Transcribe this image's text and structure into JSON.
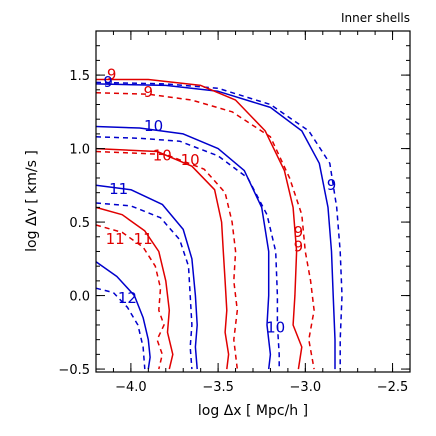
{
  "chart_data": {
    "type": "line",
    "title": "Inner shells",
    "xlabel": "log Δx  [ Mpc/h ]",
    "ylabel": "log Δv  [ km/s ]",
    "xlim": [
      -4.2,
      -2.4
    ],
    "ylim": [
      -0.52,
      1.8
    ],
    "xticks": [
      -4.0,
      -3.5,
      -3.0,
      -2.5
    ],
    "xtick_labels": [
      "−4.0",
      "−3.5",
      "−3.0",
      "−2.5"
    ],
    "yticks": [
      -0.5,
      0.0,
      0.5,
      1.0,
      1.5
    ],
    "ytick_labels": [
      "−0.5",
      "0.0",
      "0.5",
      "1.0",
      "1.5"
    ],
    "colors": {
      "blue": "#0000cc",
      "red": "#e00000"
    },
    "series": [
      {
        "color": "blue",
        "dash": false,
        "points": [
          [
            -4.2,
            1.44
          ],
          [
            -3.8,
            1.43
          ],
          [
            -3.5,
            1.39
          ],
          [
            -3.2,
            1.28
          ],
          [
            -3.02,
            1.12
          ],
          [
            -2.92,
            0.9
          ],
          [
            -2.87,
            0.6
          ],
          [
            -2.85,
            0.3
          ],
          [
            -2.84,
            0.0
          ],
          [
            -2.83,
            -0.3
          ],
          [
            -2.83,
            -0.5
          ]
        ]
      },
      {
        "color": "blue",
        "dash": true,
        "points": [
          [
            -4.2,
            1.45
          ],
          [
            -3.8,
            1.44
          ],
          [
            -3.5,
            1.41
          ],
          [
            -3.2,
            1.3
          ],
          [
            -2.98,
            1.12
          ],
          [
            -2.86,
            0.9
          ],
          [
            -2.82,
            0.6
          ],
          [
            -2.8,
            0.3
          ],
          [
            -2.79,
            0.0
          ],
          [
            -2.8,
            -0.3
          ],
          [
            -2.8,
            -0.5
          ]
        ]
      },
      {
        "color": "red",
        "dash": false,
        "points": [
          [
            -4.2,
            1.47
          ],
          [
            -3.9,
            1.47
          ],
          [
            -3.6,
            1.43
          ],
          [
            -3.4,
            1.33
          ],
          [
            -3.23,
            1.12
          ],
          [
            -3.12,
            0.85
          ],
          [
            -3.07,
            0.6
          ],
          [
            -3.05,
            0.3
          ],
          [
            -3.06,
            0.0
          ],
          [
            -3.07,
            -0.2
          ],
          [
            -3.02,
            -0.35
          ],
          [
            -3.04,
            -0.5
          ]
        ]
      },
      {
        "color": "red",
        "dash": true,
        "points": [
          [
            -4.2,
            1.38
          ],
          [
            -3.9,
            1.37
          ],
          [
            -3.65,
            1.33
          ],
          [
            -3.42,
            1.25
          ],
          [
            -3.2,
            1.08
          ],
          [
            -3.09,
            0.8
          ],
          [
            -3.02,
            0.55
          ],
          [
            -3.0,
            0.3
          ],
          [
            -2.97,
            0.1
          ],
          [
            -2.95,
            -0.1
          ],
          [
            -2.98,
            -0.3
          ],
          [
            -2.95,
            -0.5
          ]
        ]
      },
      {
        "color": "blue",
        "dash": false,
        "points": [
          [
            -4.2,
            1.15
          ],
          [
            -3.95,
            1.14
          ],
          [
            -3.7,
            1.1
          ],
          [
            -3.5,
            1.0
          ],
          [
            -3.35,
            0.85
          ],
          [
            -3.25,
            0.6
          ],
          [
            -3.21,
            0.3
          ],
          [
            -3.21,
            0.0
          ],
          [
            -3.22,
            -0.2
          ],
          [
            -3.2,
            -0.4
          ],
          [
            -3.21,
            -0.5
          ]
        ]
      },
      {
        "color": "blue",
        "dash": true,
        "points": [
          [
            -4.2,
            1.08
          ],
          [
            -3.95,
            1.07
          ],
          [
            -3.72,
            1.05
          ],
          [
            -3.5,
            0.95
          ],
          [
            -3.33,
            0.8
          ],
          [
            -3.22,
            0.55
          ],
          [
            -3.17,
            0.3
          ],
          [
            -3.16,
            0.0
          ],
          [
            -3.16,
            -0.2
          ],
          [
            -3.15,
            -0.4
          ],
          [
            -3.15,
            -0.5
          ]
        ]
      },
      {
        "color": "red",
        "dash": false,
        "points": [
          [
            -4.2,
            1.0
          ],
          [
            -3.85,
            0.98
          ],
          [
            -3.65,
            0.88
          ],
          [
            -3.52,
            0.72
          ],
          [
            -3.48,
            0.5
          ],
          [
            -3.47,
            0.3
          ],
          [
            -3.46,
            0.1
          ],
          [
            -3.45,
            -0.1
          ],
          [
            -3.46,
            -0.25
          ],
          [
            -3.44,
            -0.4
          ],
          [
            -3.45,
            -0.5
          ]
        ]
      },
      {
        "color": "red",
        "dash": true,
        "points": [
          [
            -4.2,
            0.98
          ],
          [
            -3.8,
            0.96
          ],
          [
            -3.58,
            0.86
          ],
          [
            -3.46,
            0.7
          ],
          [
            -3.42,
            0.5
          ],
          [
            -3.4,
            0.3
          ],
          [
            -3.41,
            0.1
          ],
          [
            -3.39,
            -0.1
          ],
          [
            -3.41,
            -0.3
          ],
          [
            -3.39,
            -0.5
          ]
        ]
      },
      {
        "color": "blue",
        "dash": false,
        "points": [
          [
            -4.2,
            0.75
          ],
          [
            -4.0,
            0.72
          ],
          [
            -3.82,
            0.62
          ],
          [
            -3.7,
            0.45
          ],
          [
            -3.65,
            0.25
          ],
          [
            -3.63,
            0.0
          ],
          [
            -3.62,
            -0.2
          ],
          [
            -3.63,
            -0.35
          ],
          [
            -3.62,
            -0.5
          ]
        ]
      },
      {
        "color": "blue",
        "dash": true,
        "points": [
          [
            -4.2,
            0.63
          ],
          [
            -4.0,
            0.61
          ],
          [
            -3.83,
            0.53
          ],
          [
            -3.72,
            0.38
          ],
          [
            -3.67,
            0.2
          ],
          [
            -3.66,
            0.0
          ],
          [
            -3.65,
            -0.2
          ],
          [
            -3.66,
            -0.35
          ],
          [
            -3.65,
            -0.5
          ]
        ]
      },
      {
        "color": "red",
        "dash": false,
        "points": [
          [
            -4.2,
            0.6
          ],
          [
            -4.05,
            0.55
          ],
          [
            -3.92,
            0.44
          ],
          [
            -3.84,
            0.3
          ],
          [
            -3.8,
            0.1
          ],
          [
            -3.78,
            -0.1
          ],
          [
            -3.79,
            -0.25
          ],
          [
            -3.76,
            -0.4
          ],
          [
            -3.78,
            -0.5
          ]
        ]
      },
      {
        "color": "red",
        "dash": true,
        "points": [
          [
            -4.2,
            0.48
          ],
          [
            -4.05,
            0.43
          ],
          [
            -3.93,
            0.33
          ],
          [
            -3.86,
            0.2
          ],
          [
            -3.83,
            0.05
          ],
          [
            -3.84,
            -0.1
          ],
          [
            -3.81,
            -0.2
          ],
          [
            -3.85,
            -0.3
          ],
          [
            -3.82,
            -0.4
          ],
          [
            -3.84,
            -0.5
          ]
        ]
      },
      {
        "color": "blue",
        "dash": false,
        "points": [
          [
            -4.2,
            0.23
          ],
          [
            -4.08,
            0.13
          ],
          [
            -3.98,
            0.0
          ],
          [
            -3.93,
            -0.15
          ],
          [
            -3.9,
            -0.3
          ],
          [
            -3.89,
            -0.42
          ],
          [
            -3.9,
            -0.5
          ]
        ]
      },
      {
        "color": "blue",
        "dash": true,
        "points": [
          [
            -4.2,
            0.05
          ],
          [
            -4.1,
            0.02
          ],
          [
            -4.02,
            -0.08
          ],
          [
            -3.96,
            -0.2
          ],
          [
            -3.93,
            -0.35
          ],
          [
            -3.92,
            -0.5
          ]
        ]
      }
    ],
    "contour_labels": [
      {
        "text": "9",
        "color": "red",
        "x": -4.11,
        "y": 1.5
      },
      {
        "text": "9",
        "color": "blue",
        "x": -4.13,
        "y": 1.45
      },
      {
        "text": "9",
        "color": "red",
        "x": -3.9,
        "y": 1.38
      },
      {
        "text": "9",
        "color": "blue",
        "x": -2.85,
        "y": 0.75
      },
      {
        "text": "10",
        "color": "blue",
        "x": -3.87,
        "y": 1.15
      },
      {
        "text": "10",
        "color": "red",
        "x": -3.82,
        "y": 0.95
      },
      {
        "text": "10",
        "color": "red",
        "x": -3.66,
        "y": 0.92
      },
      {
        "text": "9",
        "color": "red",
        "x": -3.04,
        "y": 0.43
      },
      {
        "text": "9",
        "color": "red",
        "x": -3.04,
        "y": 0.33
      },
      {
        "text": "11",
        "color": "blue",
        "x": -4.07,
        "y": 0.72
      },
      {
        "text": "11",
        "color": "red",
        "x": -4.09,
        "y": 0.38
      },
      {
        "text": "11",
        "color": "red",
        "x": -3.93,
        "y": 0.38
      },
      {
        "text": "10",
        "color": "blue",
        "x": -3.17,
        "y": -0.22
      },
      {
        "text": "12",
        "color": "blue",
        "x": -4.02,
        "y": -0.02
      }
    ]
  }
}
